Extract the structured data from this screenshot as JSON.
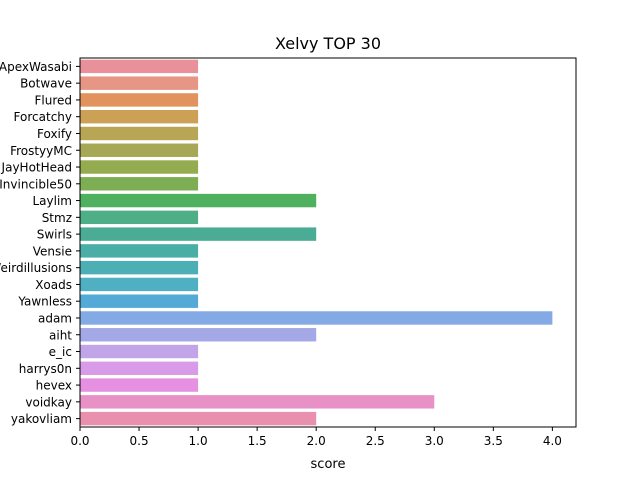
{
  "chart_data": {
    "type": "bar",
    "orientation": "horizontal",
    "title": "Xelvy TOP 30",
    "xlabel": "score",
    "ylabel": "",
    "xlim": [
      0,
      4.2
    ],
    "xticks": [
      "0.0",
      "0.5",
      "1.0",
      "1.5",
      "2.0",
      "2.5",
      "3.0",
      "3.5",
      "4.0"
    ],
    "grid": false,
    "categories": [
      "ApexWasabi",
      "Botwave",
      "Flured",
      "Forcatchy",
      "Foxify",
      "FrostyyMC",
      "JayHotHead",
      "Invincible50",
      "Laylim",
      "Stmz",
      "Swirls",
      "Vensie",
      "Weirdillusions",
      "Xoads",
      "Yawnless",
      "adam",
      "aiht",
      "e_ic",
      "harrys0n",
      "hevex",
      "voidkay",
      "yakovliam"
    ],
    "values": [
      1,
      1,
      1,
      1,
      1,
      1,
      1,
      1,
      2,
      1,
      2,
      1,
      1,
      1,
      1,
      4,
      2,
      1,
      1,
      1,
      3,
      2
    ],
    "colors": [
      "#e8919a",
      "#e79585",
      "#e2925c",
      "#cca055",
      "#b9a654",
      "#a6a855",
      "#95ab4f",
      "#7eae53",
      "#4fb05f",
      "#4eae86",
      "#4aac95",
      "#4aada6",
      "#4cafb5",
      "#4fb0c3",
      "#53aad6",
      "#83aae5",
      "#a5a8e7",
      "#c2a4e8",
      "#d99be8",
      "#e590e1",
      "#e891c6",
      "#e890ad"
    ]
  }
}
